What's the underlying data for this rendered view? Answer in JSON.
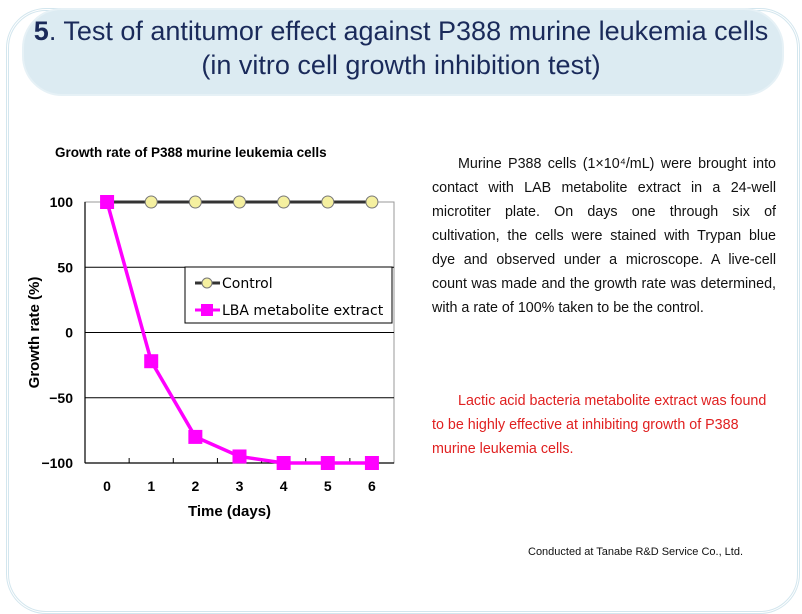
{
  "title": {
    "number": "5",
    "text": ". Test of antitumor effect against P388 murine leukemia cells (in vitro cell growth inhibition test)"
  },
  "description": "Murine P388 cells (1×10⁴/mL) were brought into contact with LAB metabolite extract in a 24-well microtiter plate. On days one through six of cultivation, the cells were stained with Trypan blue dye and observed under a microscope. A live-cell count was made and the growth rate was determined, with a rate of 100% taken to be the control.",
  "conclusion": "Lactic acid bacteria metabolite extract was found to be highly effective at inhibiting growth of P388 murine leukemia cells.",
  "credit": "Conducted at Tanabe R&D Service Co., Ltd.",
  "chart_data": {
    "type": "line",
    "title": "Growth rate of P388 murine leukemia cells",
    "xlabel": "Time (days)",
    "ylabel": "Growth rate (%)",
    "x": [
      "0",
      "1",
      "2",
      "3",
      "4",
      "5",
      "6"
    ],
    "yticks": [
      "100",
      "50",
      "0",
      "−50",
      "−100"
    ],
    "ylim": [
      -100,
      100
    ],
    "legend_position": "center-right",
    "series": [
      {
        "name": "Control",
        "values": [
          100,
          100,
          100,
          100,
          100,
          100,
          100
        ],
        "color": "#333333",
        "marker_color": "#f5f0a0"
      },
      {
        "name": "LBA metabolite extract",
        "values": [
          100,
          -22,
          -80,
          -95,
          -100,
          -100,
          -100
        ],
        "color": "#ff00ff"
      }
    ]
  }
}
